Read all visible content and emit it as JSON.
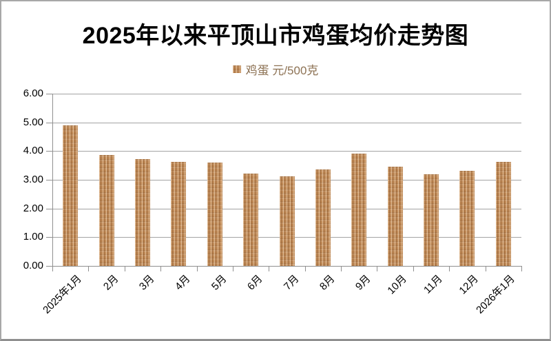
{
  "title": "2025年以来平顶山市鸡蛋均价走势图",
  "legend": {
    "label": "鸡蛋 元/500克",
    "series_name": "鸡蛋",
    "unit": "元/500克",
    "swatch_color": "#c08a57",
    "text_color": "#8d7254"
  },
  "colors": {
    "bar": "#c08a57",
    "bar_light": "#dcb286",
    "bar_dark": "#aa7443",
    "gridline": "#a3a3a3",
    "axis": "#8f8f8f",
    "title_text": "#000000",
    "frame_border": "#a7a7a7"
  },
  "chart_data": {
    "type": "bar",
    "title": "2025年以来平顶山市鸡蛋均价走势图",
    "categories": [
      "2025年1月",
      "2月",
      "3月",
      "4月",
      "5月",
      "6月",
      "7月",
      "8月",
      "9月",
      "10月",
      "11月",
      "12月",
      "2026年1月"
    ],
    "series": [
      {
        "name": "鸡蛋",
        "unit": "元/500克",
        "values": [
          4.9,
          3.87,
          3.72,
          3.62,
          3.6,
          3.21,
          3.11,
          3.37,
          3.91,
          3.46,
          3.19,
          3.31,
          3.62
        ]
      }
    ],
    "xlabel": "",
    "ylabel": "",
    "ylim": [
      0,
      6
    ],
    "ytick_step": 1,
    "ytick_labels": [
      "0.00",
      "1.00",
      "2.00",
      "3.00",
      "4.00",
      "5.00",
      "6.00"
    ],
    "grid": true,
    "legend_position": "top",
    "x_label_rotation": -45,
    "bar_color": "#c08a57"
  }
}
